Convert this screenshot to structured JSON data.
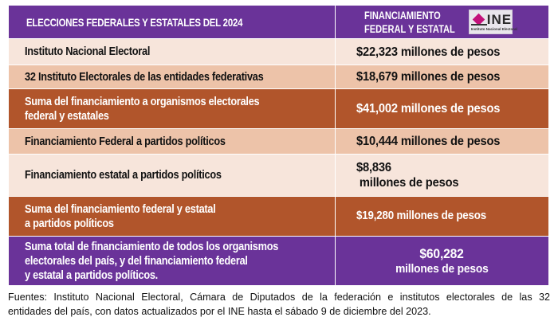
{
  "header": {
    "left_title": "ELECCIONES FEDERALES  Y ESTATALES DEL 2024",
    "right_title_line1": "FINANCIAMIENTO",
    "right_title_line2": "FEDERAL Y ESTATAL",
    "logo": {
      "wordmark": "INE",
      "subtitle": "Instituto Nacional Electoral",
      "icon": "ine-logo-icon"
    }
  },
  "rows": [
    {
      "label_lines": [
        "Instituto Nacional Electoral"
      ],
      "value_lines": [
        "$22,323 millones de pesos"
      ]
    },
    {
      "label_lines": [
        "32 Instituto Electorales de las entidades federativas"
      ],
      "value_lines": [
        "$18,679 millones de pesos"
      ]
    },
    {
      "label_lines": [
        "Suma del financiamiento a organismos electorales",
        "federal y estatales"
      ],
      "value_lines": [
        "$41,002 millones de pesos"
      ]
    },
    {
      "label_lines": [
        "Financiamiento Federal a partidos políticos"
      ],
      "value_lines": [
        "$10,444 millones de pesos"
      ]
    },
    {
      "label_lines": [
        "Financiamiento estatal a partidos políticos"
      ],
      "value_lines": [
        "$8,836",
        " millones de pesos"
      ]
    },
    {
      "label_lines": [
        "Suma del financiamiento federal y estatal",
        "a partidos políticos"
      ],
      "value_lines": [
        "$19,280 millones de pesos"
      ]
    },
    {
      "label_lines": [
        "Suma total de financiamiento de todos los organismos",
        "electorales del país, y del financiamiento federal",
        "y estatal a partidos políticos."
      ],
      "value_lines": [
        "$60,282",
        "millones de pesos"
      ]
    }
  ],
  "colors": {
    "purple": "#6a3399",
    "light": "#f7e5db",
    "tan": "#edc3a9",
    "rust": "#b1552b"
  },
  "footnote": {
    "line1": "Fuentes: Instituto Nacional Electoral, Cámara de Diputados de la federación e institutos electorales de las 32",
    "line2": "entidades del país, con datos actualizados por el INE hasta el sábado 9 de diciembre del 2023."
  }
}
